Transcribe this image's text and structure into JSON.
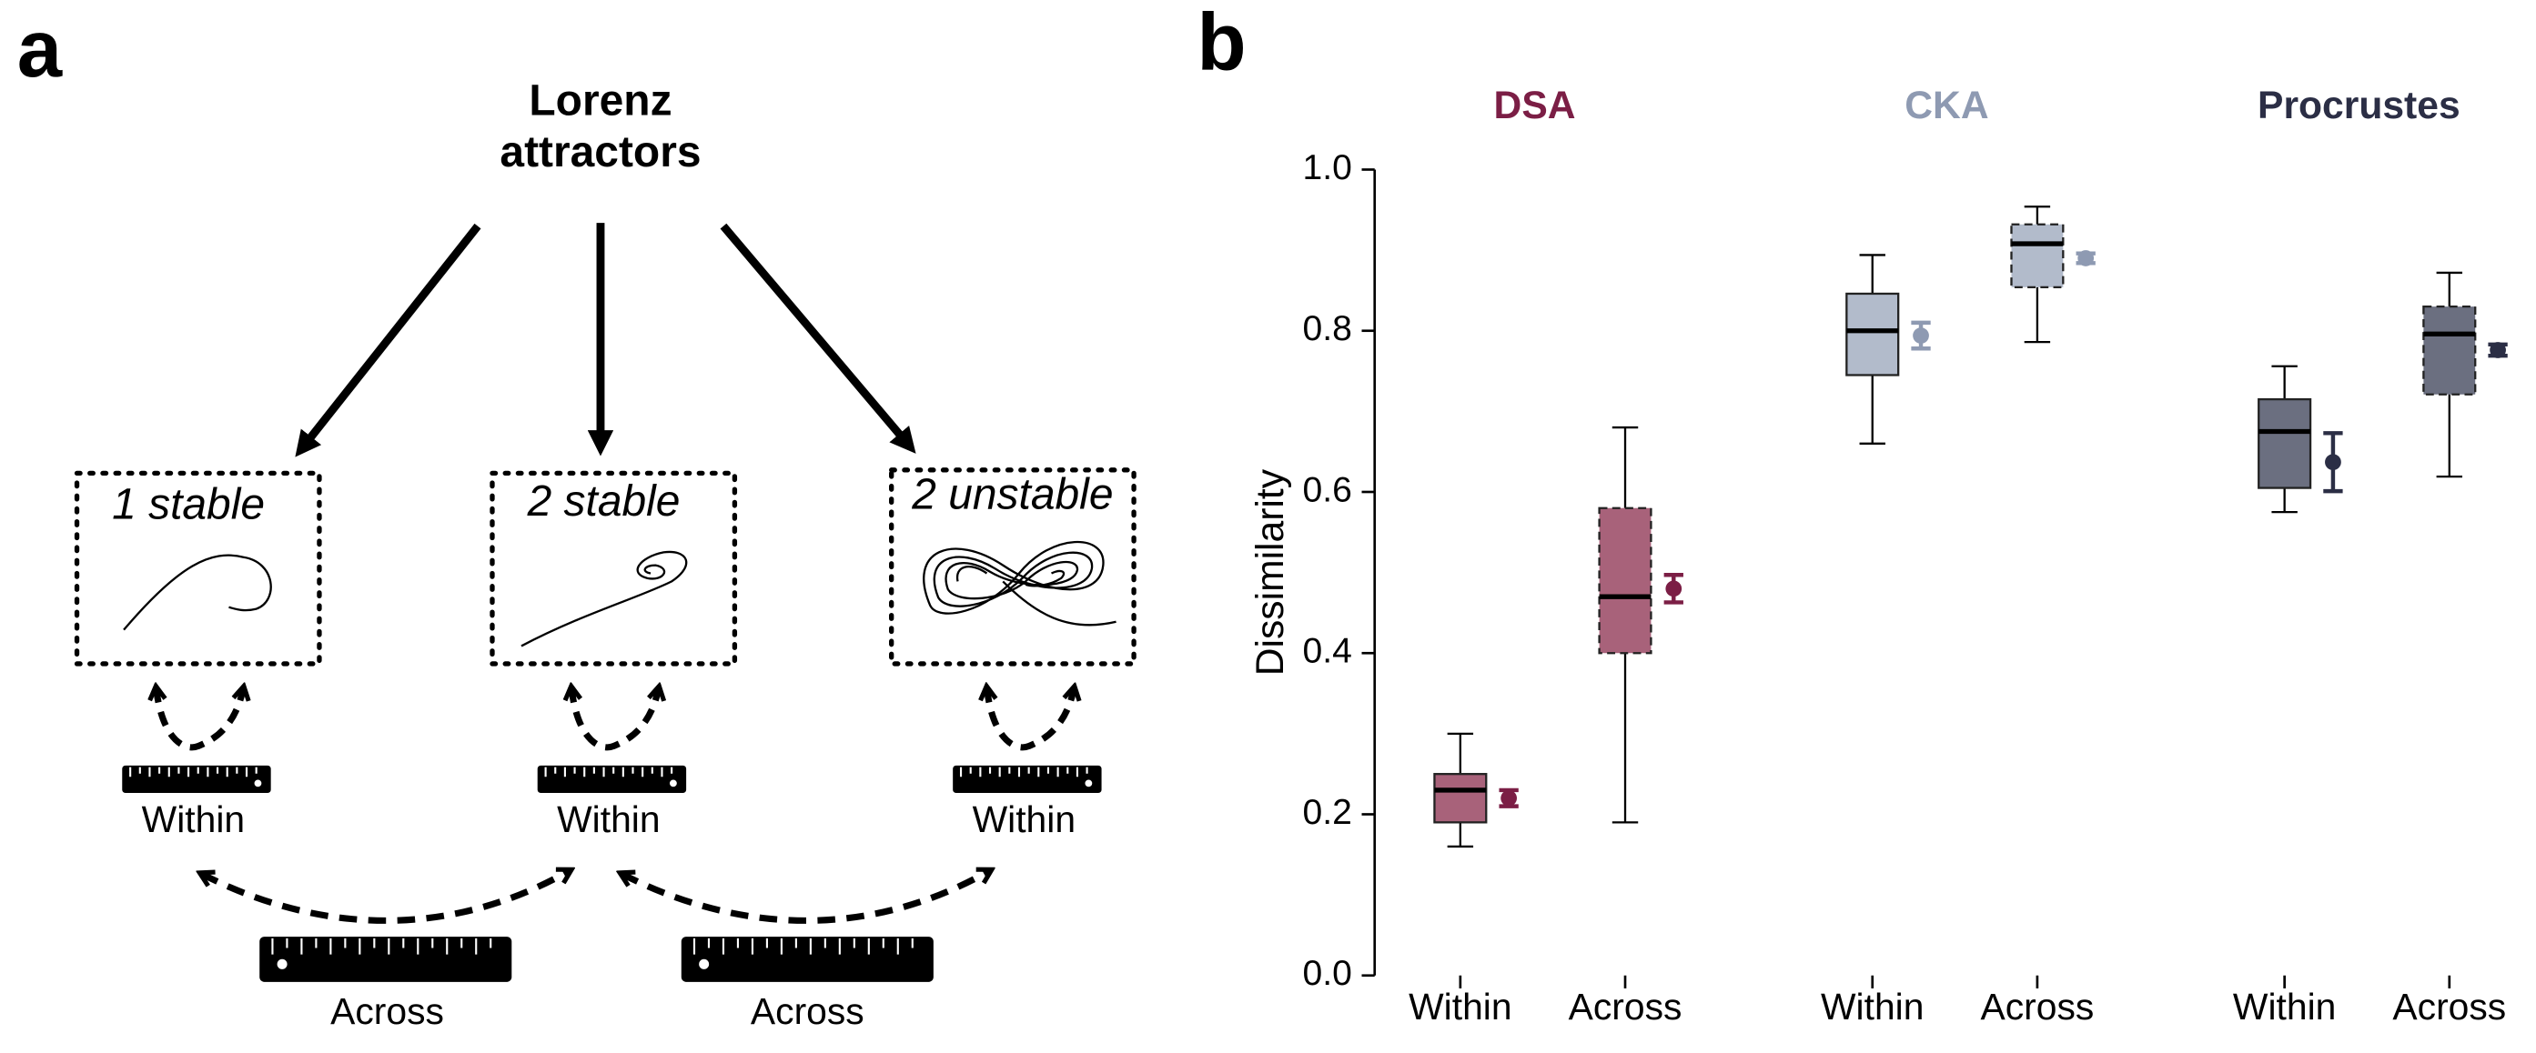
{
  "panel_labels": [
    "a",
    "b"
  ],
  "diagram": {
    "title_lines": [
      "Lorenz",
      "attractors"
    ],
    "systems": [
      "1 stable",
      "2 stable",
      "2 unstable"
    ],
    "within_labels": [
      "Within",
      "Within",
      "Within"
    ],
    "across_labels": [
      "Across",
      "Across"
    ]
  },
  "chart_data": {
    "type": "box",
    "ylabel": "Dissimilarity",
    "ylim": [
      0,
      1
    ],
    "yticks": [
      {
        "value": 0,
        "label": "0.0"
      },
      0.2,
      0.4,
      0.6,
      0.8,
      {
        "value": 1,
        "label": "1.0"
      }
    ],
    "groups": [
      {
        "name": "DSA",
        "color": "#7b1e45",
        "fill": "#a8627a",
        "categories": [
          "Within",
          "Across"
        ],
        "boxes": [
          {
            "whislo": 0.16,
            "q1": 0.19,
            "med": 0.23,
            "q3": 0.25,
            "whishi": 0.3,
            "mean": 0.22,
            "err": 0.01,
            "linestyle": "solid"
          },
          {
            "whislo": 0.19,
            "q1": 0.4,
            "med": 0.47,
            "q3": 0.58,
            "whishi": 0.68,
            "mean": 0.48,
            "err": 0.017,
            "linestyle": "dashed"
          }
        ]
      },
      {
        "name": "CKA",
        "color": "#8e9ab2",
        "fill": "#b2bbcb",
        "categories": [
          "Within",
          "Across"
        ],
        "boxes": [
          {
            "whislo": 0.66,
            "q1": 0.745,
            "med": 0.8,
            "q3": 0.846,
            "whishi": 0.894,
            "mean": 0.794,
            "err": 0.016,
            "linestyle": "solid"
          },
          {
            "whislo": 0.786,
            "q1": 0.854,
            "med": 0.908,
            "q3": 0.932,
            "whishi": 0.954,
            "mean": 0.89,
            "err": 0.006,
            "linestyle": "dashed"
          }
        ]
      },
      {
        "name": "Procrustes",
        "color": "#2b2e45",
        "fill": "#6b6f80",
        "categories": [
          "Within",
          "Across"
        ],
        "boxes": [
          {
            "whislo": 0.575,
            "q1": 0.605,
            "med": 0.675,
            "q3": 0.715,
            "whishi": 0.756,
            "mean": 0.637,
            "err": 0.036,
            "linestyle": "solid"
          },
          {
            "whislo": 0.619,
            "q1": 0.721,
            "med": 0.796,
            "q3": 0.83,
            "whishi": 0.872,
            "mean": 0.776,
            "err": 0.007,
            "linestyle": "dashed"
          }
        ]
      }
    ]
  }
}
